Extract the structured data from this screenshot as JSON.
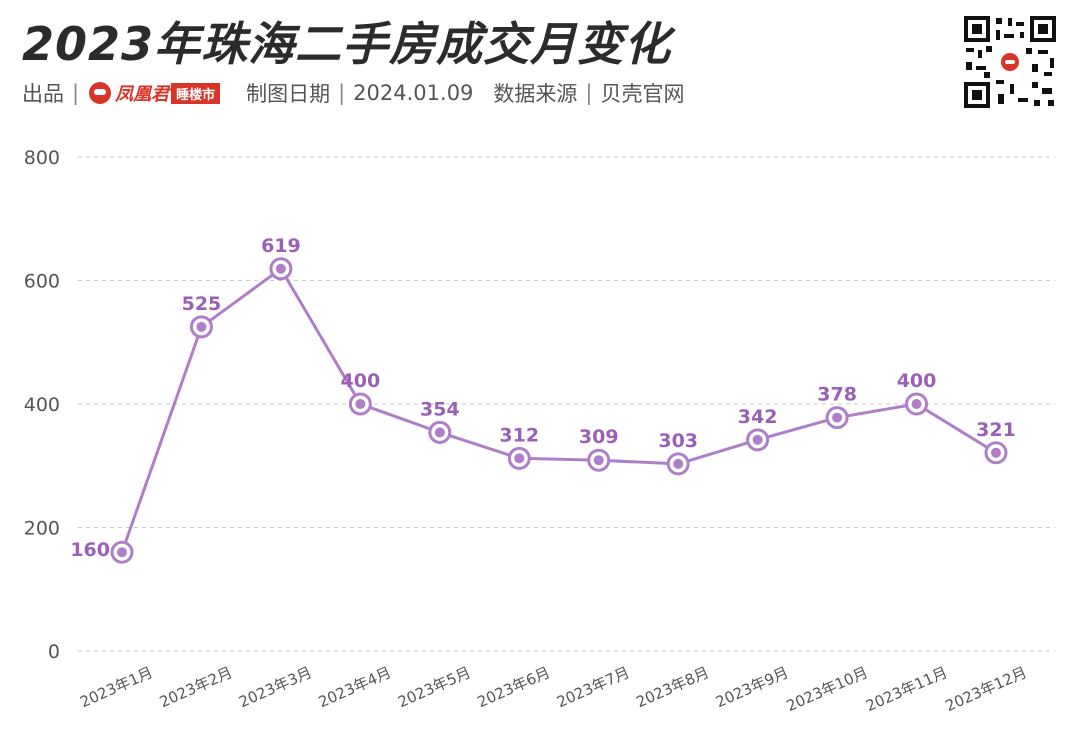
{
  "header": {
    "title": "2023年珠海二手房成交月变化",
    "produced_by_label": "出品",
    "logo_text": "凤凰君",
    "logo_badge": "睡楼市",
    "date_label": "制图日期",
    "date_value": "2024.01.09",
    "source_label": "数据来源",
    "source_value": "贝壳官网"
  },
  "colors": {
    "line": "#b07ec8",
    "label": "#9b5fb5",
    "grid": "#c8c8c8",
    "axis_text": "#555555",
    "brand_red": "#d8352a"
  },
  "chart_data": {
    "type": "line",
    "title": "2023年珠海二手房成交月变化",
    "xlabel": "",
    "ylabel": "",
    "categories": [
      "2023年1月",
      "2023年2月",
      "2023年3月",
      "2023年4月",
      "2023年5月",
      "2023年6月",
      "2023年7月",
      "2023年8月",
      "2023年9月",
      "2023年10月",
      "2023年11月",
      "2023年12月"
    ],
    "series": [
      {
        "values": [
          160,
          525,
          619,
          400,
          354,
          312,
          309,
          303,
          342,
          378,
          400,
          321
        ]
      }
    ],
    "ylim": [
      0,
      800
    ],
    "yticks": [
      0,
      200,
      400,
      600,
      800
    ],
    "grid": true,
    "data_labels": true,
    "legend": "none"
  }
}
